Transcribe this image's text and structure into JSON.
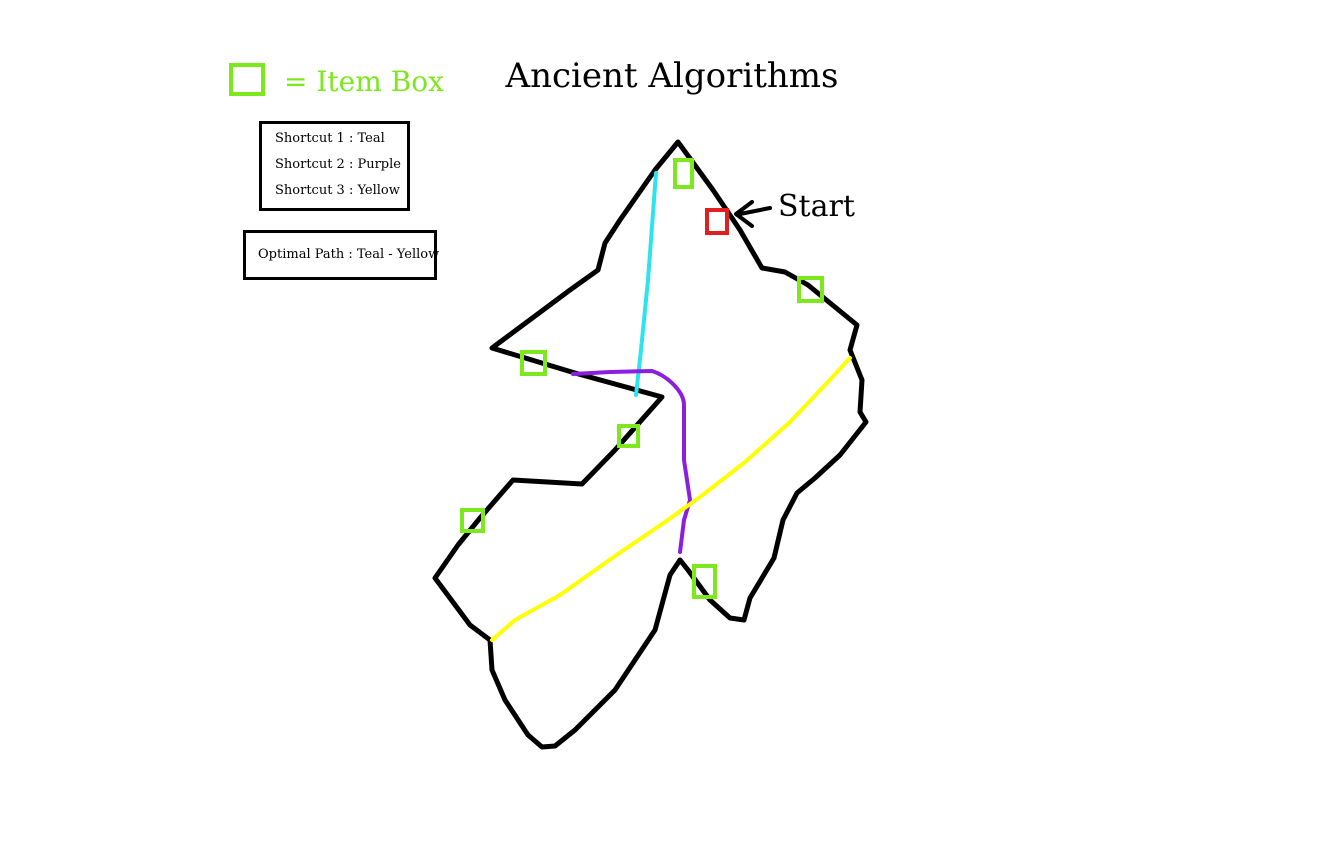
{
  "title": "Ancient Algorithms",
  "item_box_legend": {
    "label": "= Item Box"
  },
  "shortcuts_legend": {
    "lines": [
      "Shortcut 1 : Teal",
      "Shortcut 2 : Purple",
      "Shortcut 3 : Yellow"
    ]
  },
  "optimal_path": {
    "label": "Optimal Path : Teal - Yellow"
  },
  "start_marker": {
    "label": "Start"
  },
  "colors": {
    "outline": "#000000",
    "item_box": "#7ee81f",
    "start_box": "#e02020",
    "teal": "#2de3ee",
    "purple": "#8a1fe0",
    "yellow": "#ffff00"
  }
}
